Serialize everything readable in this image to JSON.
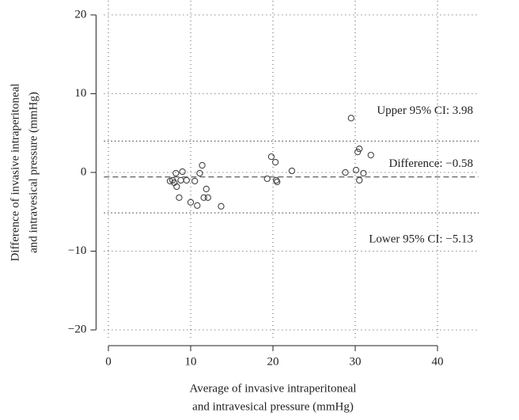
{
  "chart_data": {
    "type": "scatter",
    "x_label": [
      "Average of invasive intraperitoneal",
      "and intravesical pressure (mmHg)"
    ],
    "y_label": [
      "Difference of invasive intraperitoneal",
      "and intravesical pressure (mmHg)"
    ],
    "x": [
      7.5,
      7.8,
      8.0,
      8.2,
      8.3,
      8.6,
      8.8,
      9.0,
      9.5,
      10.0,
      10.5,
      10.8,
      11.1,
      11.4,
      11.6,
      11.9,
      12.1,
      13.7,
      19.3,
      19.8,
      20.3,
      20.4,
      20.5,
      22.3,
      28.8,
      29.5,
      30.1,
      30.3,
      30.5,
      30.5,
      31.0,
      31.9
    ],
    "values": [
      -1.1,
      -1.0,
      -1.3,
      -0.1,
      -1.8,
      -3.2,
      -1.0,
      0.1,
      -1.0,
      -3.8,
      -1.1,
      -4.2,
      -0.1,
      0.9,
      -3.2,
      -2.1,
      -3.2,
      -4.3,
      -0.8,
      2.0,
      1.3,
      -1.0,
      -1.2,
      0.2,
      0.0,
      6.9,
      0.3,
      2.6,
      3.0,
      -1.0,
      -0.1,
      2.2
    ],
    "lines": [
      {
        "value": 3.98,
        "label": "Upper 95% CI: 3.98",
        "style": "dotted"
      },
      {
        "value": -0.58,
        "label": "Difference: −0.58",
        "style": "dashed"
      },
      {
        "value": -5.13,
        "label": "Lower 95% CI: −5.13",
        "style": "dotted"
      }
    ],
    "xlim": [
      -1.5,
      45
    ],
    "ylim": [
      -22,
      21.8
    ],
    "xticks": [
      0,
      10,
      20,
      30,
      40
    ],
    "yticks": [
      {
        "value": -20,
        "label": "−20"
      },
      {
        "value": -10,
        "label": "−10"
      },
      0,
      10,
      20
    ],
    "grid": true,
    "color": "#444"
  }
}
